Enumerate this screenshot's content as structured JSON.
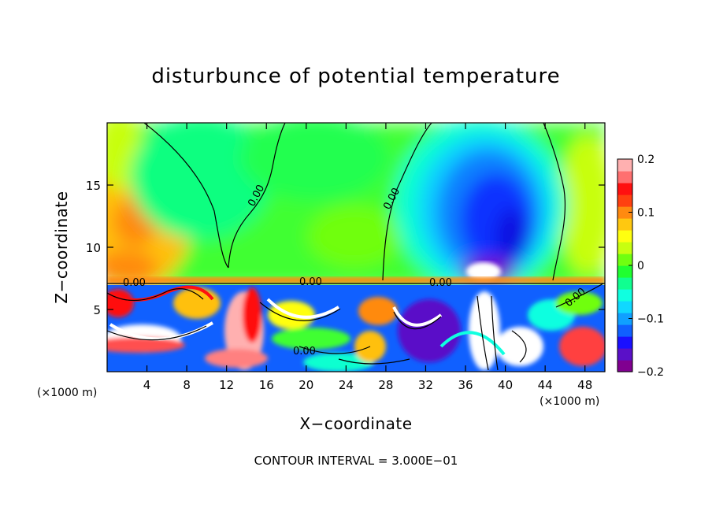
{
  "chart_data": {
    "type": "heatmap",
    "title": "disturbunce of potential temperature",
    "xlabel": "X−coordinate",
    "ylabel": "Z−coordinate",
    "x_unit_left": "(×1000 m)",
    "x_unit_right": "(×1000 m)",
    "xlim": [
      0,
      50
    ],
    "ylim": [
      0,
      20
    ],
    "x_ticks": [
      "4",
      "8",
      "12",
      "16",
      "20",
      "24",
      "28",
      "32",
      "36",
      "40",
      "44",
      "48"
    ],
    "y_ticks": [
      "5",
      "10",
      "15"
    ],
    "colorbar": {
      "range": [
        -0.2,
        0.2
      ],
      "tick_labels": [
        "0.2",
        "0.1",
        "0",
        "−0.1",
        "−0.2"
      ],
      "colors": [
        "#800090",
        "#5a10c8",
        "#1a10ff",
        "#1060ff",
        "#10a0ff",
        "#10d8ff",
        "#10ffe0",
        "#10ff90",
        "#20ff30",
        "#70ff10",
        "#c8ff10",
        "#ffff10",
        "#ffc810",
        "#ff8a10",
        "#ff4010",
        "#ff1010",
        "#ff7070",
        "#ffb0b0"
      ]
    },
    "contour_labels": [
      "0.00",
      "0.00",
      "0.00",
      "0.00",
      "0.00",
      "0.00",
      "0.00"
    ],
    "contour_interval": "CONTOUR INTERVAL = 3.000E−01"
  }
}
